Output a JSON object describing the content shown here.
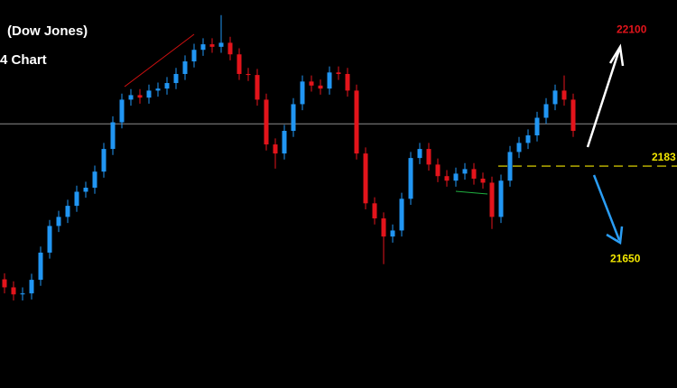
{
  "chart_data": {
    "type": "candlestick",
    "title": "(Dow Jones)",
    "subtitle": "4 Chart",
    "ylim": [
      21394,
      22165
    ],
    "up_color": "#2196f3",
    "down_color": "#e3141b",
    "reference_line": {
      "value": 21919,
      "color": "#8c8c8c"
    },
    "level": {
      "value": 21835,
      "label": "2183",
      "color": "#f2e600"
    },
    "target_high": {
      "value": 22100,
      "color": "#e3141b"
    },
    "target_low": {
      "value": 21650,
      "color": "#f2e600"
    },
    "open": [
      21610,
      21594,
      21580,
      21582,
      21609,
      21663,
      21716,
      21734,
      21756,
      21784,
      21792,
      21824,
      21869,
      21922,
      21967,
      21976,
      21971,
      21985,
      21989,
      22000,
      22018,
      22043,
      22066,
      22077,
      22072,
      22080,
      22057,
      22018,
      22016,
      21967,
      21878,
      21860,
      21905,
      21958,
      22003,
      21995,
      21989,
      22021,
      22018,
      21985,
      21860,
      21761,
      21731,
      21695,
      21707,
      21770,
      21851,
      21869,
      21838,
      21815,
      21806,
      21820,
      21829,
      21810,
      21802,
      21734,
      21806,
      21863,
      21881,
      21896,
      21931,
      21958,
      21985,
      21967
    ],
    "high": [
      21622,
      21606,
      21594,
      21621,
      21675,
      21728,
      21746,
      21768,
      21796,
      21804,
      21836,
      21881,
      21934,
      21979,
      21988,
      21988,
      21997,
      22001,
      22012,
      22030,
      22055,
      22078,
      22089,
      22089,
      22135,
      22092,
      22069,
      22030,
      22028,
      21979,
      21890,
      21917,
      21970,
      22015,
      22015,
      22007,
      22033,
      22033,
      22030,
      21997,
      21872,
      21773,
      21743,
      21719,
      21782,
      21863,
      21881,
      21881,
      21850,
      21827,
      21832,
      21841,
      21841,
      21822,
      21814,
      21818,
      21875,
      21893,
      21908,
      21943,
      21970,
      21997,
      22015,
      21979
    ],
    "low": [
      21582,
      21568,
      21568,
      21570,
      21597,
      21651,
      21704,
      21722,
      21744,
      21772,
      21780,
      21812,
      21857,
      21910,
      21955,
      21959,
      21959,
      21973,
      21977,
      21988,
      22006,
      22031,
      22054,
      22060,
      22060,
      22045,
      22006,
      22004,
      21955,
      21866,
      21830,
      21848,
      21893,
      21946,
      21983,
      21977,
      21977,
      22006,
      21973,
      21848,
      21749,
      21719,
      21640,
      21683,
      21695,
      21758,
      21839,
      21826,
      21803,
      21794,
      21794,
      21808,
      21798,
      21790,
      21710,
      21722,
      21794,
      21851,
      21869,
      21884,
      21919,
      21946,
      21955,
      21893
    ],
    "close": [
      21594,
      21580,
      21582,
      21609,
      21663,
      21716,
      21734,
      21756,
      21784,
      21792,
      21824,
      21869,
      21922,
      21967,
      21976,
      21971,
      21985,
      21989,
      22000,
      22018,
      22043,
      22066,
      22077,
      22072,
      22080,
      22057,
      22018,
      22016,
      21967,
      21878,
      21860,
      21905,
      21958,
      22003,
      21995,
      21989,
      22021,
      22018,
      21985,
      21860,
      21761,
      21731,
      21695,
      21707,
      21770,
      21851,
      21869,
      21838,
      21815,
      21806,
      21820,
      21829,
      21810,
      21802,
      21734,
      21806,
      21863,
      21881,
      21896,
      21931,
      21958,
      21985,
      21967,
      21905
    ]
  }
}
